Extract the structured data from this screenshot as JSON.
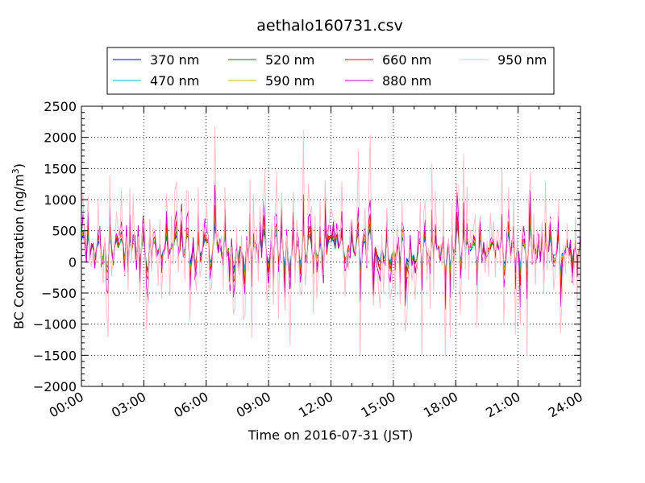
{
  "chart_data": {
    "type": "line",
    "title": "aethalo160731.csv",
    "xlabel": "Time on 2016-07-31 (JST)",
    "ylabel": "BC Concentration (ng/m³)",
    "xlim": [
      "00:00",
      "24:00"
    ],
    "ylim": [
      -2000,
      2500
    ],
    "x_ticks": [
      "00:00",
      "03:00",
      "06:00",
      "09:00",
      "12:00",
      "15:00",
      "18:00",
      "21:00",
      "24:00"
    ],
    "y_ticks": [
      -2000,
      -1500,
      -1000,
      -500,
      0,
      500,
      1000,
      1500,
      2000,
      2500
    ],
    "y_tick_labels": [
      "−2000",
      "−1500",
      "−1000",
      "−500",
      "0",
      "500",
      "1000",
      "1500",
      "2000",
      "2500"
    ],
    "grid": true,
    "legend_position": "top-center",
    "series": [
      {
        "name": "370 nm",
        "color": "#0000ff"
      },
      {
        "name": "470 nm",
        "color": "#00bfbf"
      },
      {
        "name": "520 nm",
        "color": "#008000"
      },
      {
        "name": "590 nm",
        "color": "#bfbf00"
      },
      {
        "name": "660 nm",
        "color": "#ff0000"
      },
      {
        "name": "880 nm",
        "color": "#bf00bf"
      },
      {
        "name": "950 nm",
        "color": "#ffc0cb"
      }
    ],
    "data_note_values": {
      "950 nm": {
        "max": 2180,
        "min": -1500
      },
      "880 nm": {
        "max": 1320,
        "min": -1320
      }
    }
  }
}
